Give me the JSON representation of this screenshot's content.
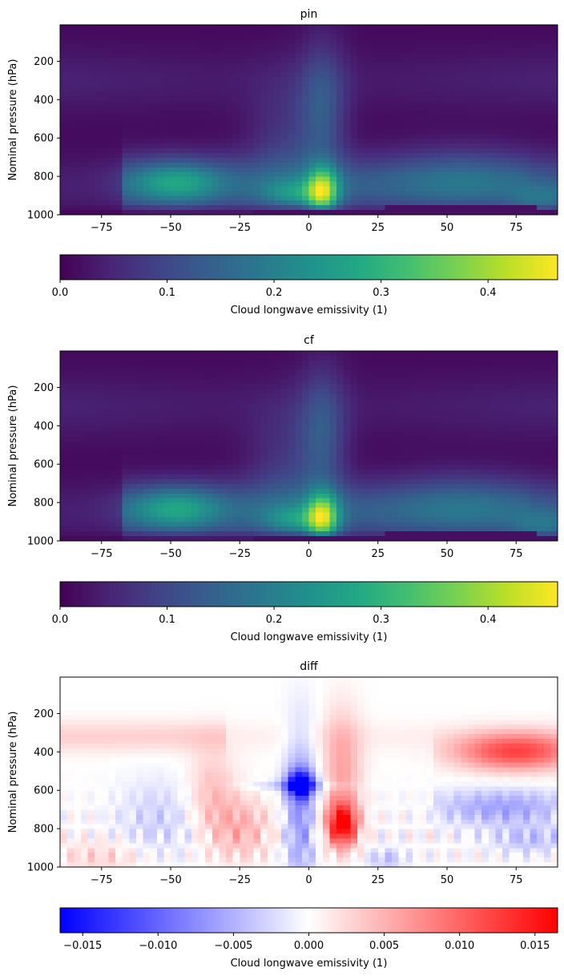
{
  "chart_data": [
    {
      "type": "heatmap",
      "title": "pin",
      "ylabel": "Nominal pressure (hPa)",
      "xlim": [
        -90,
        90
      ],
      "ylim": [
        1000,
        10
      ],
      "xticks": [
        -75,
        -50,
        -25,
        0,
        25,
        50,
        75
      ],
      "yticks": [
        200,
        400,
        600,
        800,
        1000
      ],
      "colormap": "viridis",
      "colorbar": {
        "label": "Cloud longwave emissivity (1)",
        "range": [
          0,
          0.465
        ],
        "ticks": [
          0.0,
          0.1,
          0.2,
          0.3,
          0.4
        ],
        "tick_labels": [
          "0.0",
          "0.1",
          "0.2",
          "0.3",
          "0.4"
        ]
      },
      "features": {
        "tropical_max": {
          "lat": 5,
          "p": 880,
          "value": 0.46
        },
        "sh_lowcloud_max": {
          "lat": -50,
          "p": 830,
          "value": 0.26
        },
        "nh_lowcloud_max": {
          "lat": 60,
          "p": 820,
          "value": 0.19
        }
      }
    },
    {
      "type": "heatmap",
      "title": "cf",
      "ylabel": "Nominal pressure (hPa)",
      "xlim": [
        -90,
        90
      ],
      "ylim": [
        1000,
        10
      ],
      "xticks": [
        -75,
        -50,
        -25,
        0,
        25,
        50,
        75
      ],
      "yticks": [
        200,
        400,
        600,
        800,
        1000
      ],
      "colormap": "viridis",
      "colorbar": {
        "label": "Cloud longwave emissivity (1)",
        "range": [
          0,
          0.465
        ],
        "ticks": [
          0.0,
          0.1,
          0.2,
          0.3,
          0.4
        ],
        "tick_labels": [
          "0.0",
          "0.1",
          "0.2",
          "0.3",
          "0.4"
        ]
      },
      "features": {
        "tropical_max": {
          "lat": 5,
          "p": 880,
          "value": 0.46
        },
        "sh_lowcloud_max": {
          "lat": -50,
          "p": 830,
          "value": 0.26
        },
        "nh_lowcloud_max": {
          "lat": 60,
          "p": 820,
          "value": 0.19
        }
      }
    },
    {
      "type": "heatmap",
      "title": "diff",
      "ylabel": "Nominal pressure (hPa)",
      "xlim": [
        -90,
        90
      ],
      "ylim": [
        1000,
        10
      ],
      "xticks": [
        -75,
        -50,
        -25,
        0,
        25,
        50,
        75
      ],
      "yticks": [
        200,
        400,
        600,
        800,
        1000
      ],
      "colormap": "bwr",
      "colorbar": {
        "label": "Cloud longwave emissivity (1)",
        "range": [
          -0.0165,
          0.0165
        ],
        "ticks": [
          -0.015,
          -0.01,
          -0.005,
          0.0,
          0.005,
          0.01,
          0.015
        ],
        "tick_labels": [
          "−0.015",
          "−0.010",
          "−0.005",
          "0.000",
          "0.005",
          "0.010",
          "0.015"
        ]
      },
      "features": {
        "negative_max": {
          "lat": -3,
          "p": 570,
          "value": -0.016
        },
        "positive_max": {
          "lat": 12,
          "p": 780,
          "value": 0.016
        },
        "positive_upper_nh": {
          "lat": 75,
          "p": 400,
          "value": 0.013
        },
        "negative_nh_mid": {
          "lat": 70,
          "p": 690,
          "value": -0.006
        }
      }
    }
  ]
}
